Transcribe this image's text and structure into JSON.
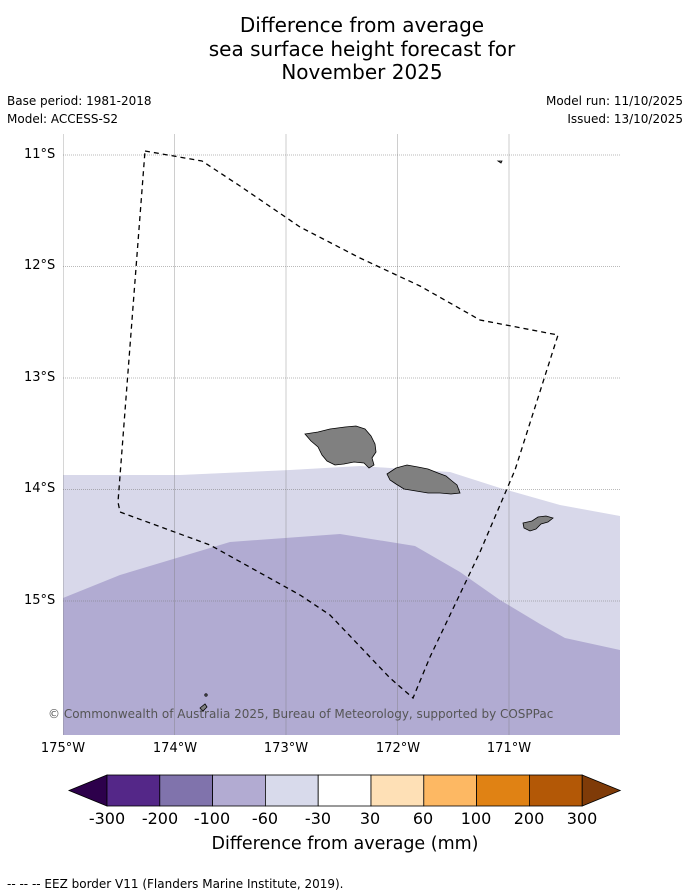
{
  "title": {
    "line1": "Difference from average",
    "line2": "sea surface height forecast for",
    "line3": "November 2025"
  },
  "meta": {
    "base_period": "Base period: 1981-2018",
    "model": "Model: ACCESS-S2",
    "model_run": "Model run: 11/10/2025",
    "issued": "Issued: 13/10/2025"
  },
  "map": {
    "lat_labels": [
      "11°S",
      "12°S",
      "13°S",
      "14°S",
      "15°S"
    ],
    "lon_labels": [
      "175°W",
      "174°W",
      "173°W",
      "172°W",
      "171°W"
    ],
    "copyright": "© Commonwealth of Australia 2025, Bureau of Meteorology, supported by COSPPac",
    "land_color": "#808080",
    "band_colors": {
      "-60_to_-30": "#d8d8ea",
      "-100_to_-60": "#b1abd2"
    }
  },
  "colorbar": {
    "ticks": [
      "-300",
      "-200",
      "-100",
      "-60",
      "-30",
      "30",
      "60",
      "100",
      "200",
      "300"
    ],
    "colors": [
      "#2d004b",
      "#542788",
      "#8073ac",
      "#b2abd2",
      "#d8daeb",
      "#ffffff",
      "#fee0b6",
      "#fdb863",
      "#e08214",
      "#b35806",
      "#7f3b08"
    ],
    "label": "Difference from average (mm)"
  },
  "footer": "--  --  -- EEZ border V11 (Flanders Marine Institute, 2019)."
}
